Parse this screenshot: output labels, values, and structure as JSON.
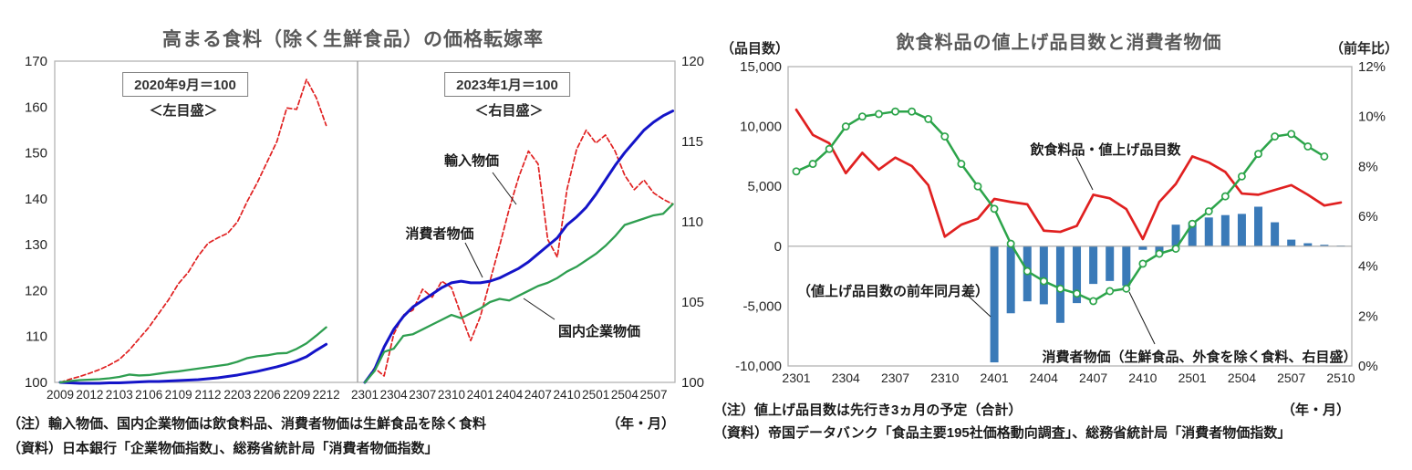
{
  "page": {
    "background": "#ffffff"
  },
  "chart_data": [
    {
      "type": "line",
      "title": "高まる食料（除く生鮮食品）の価格転嫁率",
      "note": "（注）輸入物価、国内企業物価は飲食料品、消費者物価は生鮮食品を除く食料",
      "unit_label": "（年・月）",
      "source": "（資料）日本銀行「企業物価指数」、総務省統計局「消費者物価指数」",
      "y_left": {
        "lim": [
          100,
          170
        ],
        "ticks": [
          170,
          160,
          150,
          140,
          130,
          120,
          110,
          100
        ]
      },
      "y_right": {
        "lim": [
          100,
          120
        ],
        "ticks": [
          120,
          115,
          110,
          105,
          100
        ]
      },
      "grid": false,
      "panels": [
        {
          "caption": "2020年9月＝100",
          "scale_caption": "＜左目盛＞",
          "axis": "left",
          "x_tick_every": 3,
          "x": [
            "2009",
            "2010",
            "2011",
            "2012",
            "2101",
            "2102",
            "2103",
            "2104",
            "2105",
            "2106",
            "2107",
            "2108",
            "2109",
            "2110",
            "2111",
            "2112",
            "2201",
            "2202",
            "2203",
            "2204",
            "2205",
            "2206",
            "2207",
            "2208",
            "2209",
            "2210",
            "2211",
            "2212"
          ],
          "series": [
            {
              "name": "輸入物価",
              "color": "#e02020",
              "style": "dashed",
              "values": [
                100,
                100.7,
                101.3,
                102.0,
                102.8,
                103.8,
                105.0,
                107.0,
                109.5,
                112.0,
                115.0,
                118.0,
                121.5,
                124.0,
                127.5,
                130.3,
                131.5,
                132.5,
                135.0,
                139.5,
                143.5,
                148.0,
                152.5,
                159.8,
                159.5,
                166.0,
                162.0,
                156.0
              ]
            },
            {
              "name": "消費者物価",
              "color": "#1414c8",
              "style": "solid",
              "values": [
                100,
                99.9,
                99.8,
                99.8,
                99.8,
                99.9,
                99.9,
                100.0,
                100.1,
                100.2,
                100.2,
                100.3,
                100.4,
                100.5,
                100.6,
                100.8,
                101.0,
                101.3,
                101.6,
                102.0,
                102.4,
                102.9,
                103.4,
                104.0,
                104.7,
                105.6,
                107.0,
                108.3
              ]
            },
            {
              "name": "国内企業物価",
              "color": "#2e9e50",
              "style": "solid",
              "values": [
                100,
                100.3,
                100.5,
                100.6,
                100.7,
                100.9,
                101.2,
                101.7,
                101.5,
                101.6,
                101.9,
                102.2,
                102.4,
                102.7,
                103.0,
                103.3,
                103.6,
                103.9,
                104.5,
                105.3,
                105.7,
                105.9,
                106.3,
                106.4,
                107.3,
                108.5,
                110.2,
                112.0
              ]
            }
          ]
        },
        {
          "caption": "2023年1月＝100",
          "scale_caption": "＜右目盛＞",
          "axis": "right",
          "x_tick_every": 3,
          "x": [
            "2301",
            "2302",
            "2303",
            "2304",
            "2305",
            "2306",
            "2307",
            "2308",
            "2309",
            "2310",
            "2311",
            "2312",
            "2401",
            "2402",
            "2403",
            "2404",
            "2405",
            "2406",
            "2407",
            "2408",
            "2409",
            "2410",
            "2411",
            "2412",
            "2501",
            "2502",
            "2503",
            "2504",
            "2505",
            "2506",
            "2507",
            "2508",
            "2509"
          ],
          "series": [
            {
              "name": "輸入物価",
              "color": "#e02020",
              "style": "dashed",
              "values": [
                100,
                100.9,
                100.4,
                103.0,
                104.2,
                104.5,
                105.8,
                105.3,
                106.3,
                105.9,
                104.2,
                102.6,
                104.1,
                106.3,
                108.5,
                110.8,
                112.8,
                114.4,
                113.6,
                108.9,
                107.8,
                112.0,
                114.5,
                115.7,
                114.9,
                115.4,
                114.4,
                112.9,
                112.0,
                112.6,
                111.8,
                111.4,
                111.1
              ]
            },
            {
              "name": "消費者物価",
              "color": "#1414c8",
              "style": "solid",
              "values": [
                100,
                100.8,
                102.2,
                103.3,
                104.1,
                104.7,
                105.1,
                105.5,
                105.9,
                106.2,
                106.3,
                106.2,
                106.2,
                106.3,
                106.5,
                106.8,
                107.1,
                107.5,
                108.0,
                108.5,
                109.0,
                109.8,
                110.3,
                110.9,
                111.7,
                112.6,
                113.5,
                114.3,
                115.0,
                115.7,
                116.2,
                116.6,
                116.9
              ]
            },
            {
              "name": "国内企業物価",
              "color": "#2e9e50",
              "style": "solid",
              "values": [
                100,
                100.7,
                101.9,
                102.1,
                102.9,
                103.0,
                103.3,
                103.6,
                103.9,
                104.2,
                104.0,
                104.3,
                104.6,
                105.0,
                105.2,
                105.1,
                105.4,
                105.7,
                106.0,
                106.2,
                106.5,
                106.9,
                107.2,
                107.6,
                108.0,
                108.5,
                109.1,
                109.8,
                110.0,
                110.2,
                110.4,
                110.5,
                111.1
              ]
            }
          ]
        }
      ]
    },
    {
      "type": "combo",
      "title": "飲食料品の値上げ品目数と消費者物価",
      "left_axis_caption": "（品目数）",
      "right_axis_caption": "（前年比）",
      "note": "（注）値上げ品目数は先行き3ヵ月の予定（合計）",
      "unit_label": "（年・月）",
      "source": "（資料）帝国データバンク「食品主要195社価格動向調査」、総務省統計局「消費者物価指数」",
      "x_tick_every": 3,
      "x": [
        "2301",
        "2302",
        "2303",
        "2304",
        "2305",
        "2306",
        "2307",
        "2308",
        "2309",
        "2310",
        "2311",
        "2312",
        "2401",
        "2402",
        "2403",
        "2404",
        "2405",
        "2406",
        "2407",
        "2408",
        "2409",
        "2410",
        "2411",
        "2412",
        "2501",
        "2502",
        "2503",
        "2504",
        "2505",
        "2506",
        "2507",
        "2508",
        "2509",
        "2510"
      ],
      "y_left": {
        "lim": [
          -10000,
          15000
        ],
        "ticks": [
          "15,000",
          "10,000",
          "5,000",
          "0",
          "-5,000",
          "-10,000"
        ]
      },
      "y_right": {
        "lim": [
          0,
          12
        ],
        "ticks": [
          "12%",
          "10%",
          "8%",
          "6%",
          "4%",
          "2%",
          "0%"
        ]
      },
      "bars": {
        "name": "（値上げ品目数の前年同月差）",
        "color": "#3a7ab8",
        "axis": "left",
        "values": [
          null,
          null,
          null,
          null,
          null,
          null,
          null,
          null,
          null,
          null,
          null,
          null,
          -9700,
          -5600,
          -4600,
          -4850,
          -6400,
          -4750,
          -3150,
          -2900,
          -3300,
          -300,
          -700,
          1800,
          2000,
          2400,
          2600,
          2700,
          3300,
          2000,
          550,
          250,
          120,
          60
        ]
      },
      "lines": [
        {
          "name": "飲食料品・値上げ品目数",
          "color": "#e02020",
          "axis": "left",
          "marker": "none",
          "values": [
            11400,
            9300,
            8600,
            6100,
            7800,
            6400,
            7400,
            6700,
            5100,
            800,
            1800,
            2300,
            3950,
            3700,
            3500,
            1300,
            1200,
            1700,
            4300,
            4000,
            3100,
            600,
            3700,
            5200,
            7500,
            7000,
            6200,
            4400,
            4300,
            4700,
            5100,
            4300,
            3400,
            3650
          ]
        },
        {
          "name": "消費者物価（生鮮食品、外食を除く食料、右目盛）",
          "color": "#2ca44a",
          "axis": "right",
          "marker": "circle",
          "values": [
            7.8,
            8.1,
            8.7,
            9.6,
            10.0,
            10.1,
            10.2,
            10.2,
            9.9,
            9.2,
            8.1,
            7.2,
            6.3,
            4.9,
            3.8,
            3.4,
            3.1,
            2.9,
            2.6,
            3.0,
            3.1,
            4.1,
            4.5,
            4.7,
            5.7,
            6.2,
            6.8,
            7.6,
            8.5,
            9.2,
            9.3,
            8.8,
            8.4,
            null
          ]
        }
      ]
    }
  ]
}
